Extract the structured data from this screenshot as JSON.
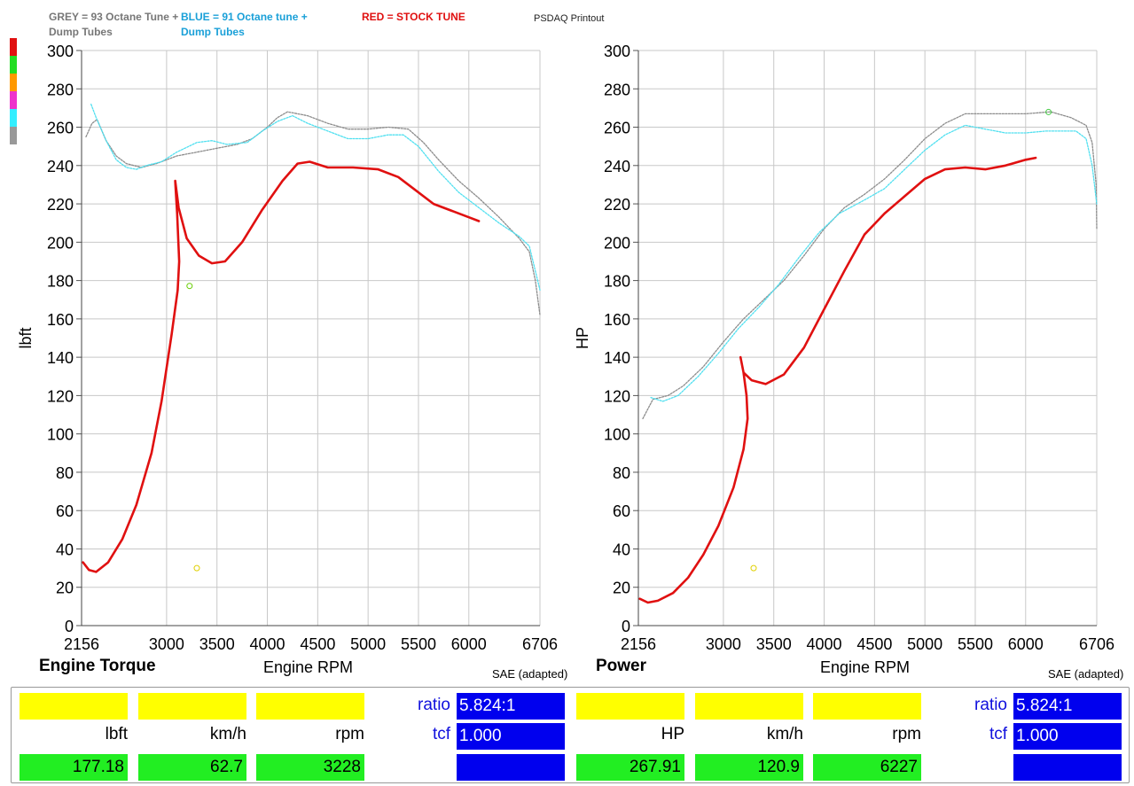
{
  "legend": {
    "grey": "GREY = 93 Octane Tune + Dump Tubes",
    "blue": "BLUE = 91 Octane tune + Dump Tubes",
    "red": "RED =  STOCK TUNE",
    "psdaq": "PSDAQ Printout"
  },
  "colors": {
    "grey": "#8c8c8c",
    "cyan": "#50e0f0",
    "red": "#e01010",
    "yellow": "#ffff00",
    "green": "#22ee22",
    "blue": "#0000ee"
  },
  "panels": {
    "torque": {
      "title": "Engine Torque",
      "xlabel": "Engine RPM",
      "sae": "SAE (adapted)",
      "units": [
        "lbft",
        "km/h",
        "rpm"
      ],
      "values": [
        "177.18",
        "62.7",
        "3228"
      ],
      "ratio_label": "ratio",
      "ratio_value": "5.824:1",
      "tcf_label": "tcf",
      "tcf_value": "1.000"
    },
    "power": {
      "title": "Power",
      "xlabel": "Engine RPM",
      "sae": "SAE (adapted)",
      "units": [
        "HP",
        "km/h",
        "rpm"
      ],
      "values": [
        "267.91",
        "120.9",
        "6227"
      ],
      "ratio_label": "ratio",
      "ratio_value": "5.824:1",
      "tcf_label": "tcf",
      "tcf_value": "1.000"
    }
  },
  "chart_data": [
    {
      "type": "line",
      "title": "Engine Torque",
      "xlabel": "Engine RPM",
      "ylabel": "lbft",
      "xlim": [
        2156,
        6706
      ],
      "ylim": [
        0,
        300
      ],
      "x_ticks": [
        2156,
        3000,
        3500,
        4000,
        4500,
        5000,
        5500,
        6000,
        6706
      ],
      "y_ticks": [
        0,
        20,
        40,
        60,
        80,
        100,
        120,
        140,
        160,
        180,
        200,
        220,
        240,
        260,
        280,
        300
      ],
      "grid": true,
      "series": [
        {
          "name": "GREY = 93 Octane Tune + Dump Tubes",
          "color": "grey",
          "style": "dotted",
          "points": [
            [
              2200,
              255
            ],
            [
              2260,
              262
            ],
            [
              2310,
              264
            ],
            [
              2400,
              253
            ],
            [
              2500,
              245
            ],
            [
              2600,
              241
            ],
            [
              2750,
              239
            ],
            [
              2900,
              241
            ],
            [
              3100,
              245
            ],
            [
              3300,
              247
            ],
            [
              3500,
              249
            ],
            [
              3700,
              251
            ],
            [
              3850,
              254
            ],
            [
              4000,
              260
            ],
            [
              4100,
              265
            ],
            [
              4200,
              268
            ],
            [
              4400,
              266
            ],
            [
              4600,
              262
            ],
            [
              4800,
              259
            ],
            [
              5000,
              259
            ],
            [
              5200,
              260
            ],
            [
              5400,
              259
            ],
            [
              5550,
              252
            ],
            [
              5700,
              243
            ],
            [
              5900,
              232
            ],
            [
              6100,
              223
            ],
            [
              6300,
              213
            ],
            [
              6500,
              202
            ],
            [
              6600,
              195
            ],
            [
              6660,
              180
            ],
            [
              6706,
              162
            ]
          ]
        },
        {
          "name": "BLUE = 91 Octane tune + Dump Tubes",
          "color": "cyan",
          "style": "dotted",
          "points": [
            [
              2250,
              272
            ],
            [
              2300,
              265
            ],
            [
              2400,
              253
            ],
            [
              2500,
              243
            ],
            [
              2600,
              239
            ],
            [
              2700,
              238
            ],
            [
              2800,
              240
            ],
            [
              2950,
              242
            ],
            [
              3100,
              247
            ],
            [
              3300,
              252
            ],
            [
              3450,
              253
            ],
            [
              3600,
              251
            ],
            [
              3800,
              252
            ],
            [
              3950,
              258
            ],
            [
              4100,
              263
            ],
            [
              4250,
              266
            ],
            [
              4400,
              262
            ],
            [
              4600,
              258
            ],
            [
              4800,
              254
            ],
            [
              5000,
              254
            ],
            [
              5200,
              256
            ],
            [
              5350,
              256
            ],
            [
              5500,
              250
            ],
            [
              5700,
              237
            ],
            [
              5900,
              226
            ],
            [
              6100,
              218
            ],
            [
              6300,
              210
            ],
            [
              6500,
              203
            ],
            [
              6600,
              198
            ],
            [
              6660,
              185
            ],
            [
              6706,
              175
            ]
          ]
        },
        {
          "name": "RED =  STOCK TUNE",
          "color": "red",
          "style": "solid",
          "points": [
            [
              2170,
              33
            ],
            [
              2230,
              29
            ],
            [
              2300,
              28
            ],
            [
              2420,
              33
            ],
            [
              2560,
              45
            ],
            [
              2700,
              63
            ],
            [
              2850,
              90
            ],
            [
              2950,
              117
            ],
            [
              3050,
              152
            ],
            [
              3110,
              175
            ],
            [
              3125,
              190
            ],
            [
              3105,
              215
            ],
            [
              3090,
              228
            ],
            [
              3085,
              232
            ],
            [
              3120,
              218
            ],
            [
              3200,
              202
            ],
            [
              3320,
              193
            ],
            [
              3450,
              189
            ],
            [
              3580,
              190
            ],
            [
              3750,
              200
            ],
            [
              3950,
              217
            ],
            [
              4150,
              232
            ],
            [
              4300,
              241
            ],
            [
              4420,
              242
            ],
            [
              4600,
              239
            ],
            [
              4850,
              239
            ],
            [
              5100,
              238
            ],
            [
              5300,
              234
            ],
            [
              5450,
              228
            ],
            [
              5650,
              220
            ],
            [
              5850,
              216
            ],
            [
              6000,
              213
            ],
            [
              6100,
              211
            ]
          ]
        }
      ],
      "markers": [
        {
          "x": 3228,
          "y": 177.18,
          "color": "#66cc00"
        },
        {
          "x": 3300,
          "y": 30,
          "color": "#e0d000"
        }
      ]
    },
    {
      "type": "line",
      "title": "Power",
      "xlabel": "Engine RPM",
      "ylabel": "HP",
      "xlim": [
        2156,
        6706
      ],
      "ylim": [
        0,
        300
      ],
      "x_ticks": [
        2156,
        3000,
        3500,
        4000,
        4500,
        5000,
        5500,
        6000,
        6706
      ],
      "y_ticks": [
        0,
        20,
        40,
        60,
        80,
        100,
        120,
        140,
        160,
        180,
        200,
        220,
        240,
        260,
        280,
        300
      ],
      "grid": true,
      "series": [
        {
          "name": "GREY = 93 Octane Tune + Dump Tubes",
          "color": "grey",
          "style": "dotted",
          "points": [
            [
              2200,
              108
            ],
            [
              2300,
              118
            ],
            [
              2450,
              120
            ],
            [
              2600,
              125
            ],
            [
              2800,
              135
            ],
            [
              3000,
              148
            ],
            [
              3200,
              160
            ],
            [
              3400,
              170
            ],
            [
              3600,
              180
            ],
            [
              3800,
              193
            ],
            [
              4000,
              207
            ],
            [
              4200,
              218
            ],
            [
              4400,
              225
            ],
            [
              4600,
              233
            ],
            [
              4800,
              243
            ],
            [
              5000,
              254
            ],
            [
              5200,
              262
            ],
            [
              5400,
              267
            ],
            [
              5700,
              267
            ],
            [
              6000,
              267
            ],
            [
              6250,
              268
            ],
            [
              6450,
              265
            ],
            [
              6600,
              261
            ],
            [
              6660,
              252
            ],
            [
              6700,
              230
            ],
            [
              6706,
              207
            ]
          ]
        },
        {
          "name": "BLUE = 91 Octane tune + Dump Tubes",
          "color": "cyan",
          "style": "dotted",
          "points": [
            [
              2280,
              119
            ],
            [
              2400,
              117
            ],
            [
              2550,
              120
            ],
            [
              2750,
              130
            ],
            [
              2950,
              142
            ],
            [
              3150,
              155
            ],
            [
              3350,
              166
            ],
            [
              3550,
              178
            ],
            [
              3750,
              192
            ],
            [
              3950,
              205
            ],
            [
              4150,
              215
            ],
            [
              4400,
              222
            ],
            [
              4600,
              228
            ],
            [
              4800,
              238
            ],
            [
              5000,
              248
            ],
            [
              5200,
              256
            ],
            [
              5400,
              261
            ],
            [
              5600,
              259
            ],
            [
              5800,
              257
            ],
            [
              6000,
              257
            ],
            [
              6200,
              258
            ],
            [
              6500,
              258
            ],
            [
              6600,
              254
            ],
            [
              6660,
              240
            ],
            [
              6706,
              220
            ]
          ]
        },
        {
          "name": "RED =  STOCK TUNE",
          "color": "red",
          "style": "solid",
          "points": [
            [
              2170,
              14
            ],
            [
              2250,
              12
            ],
            [
              2350,
              13
            ],
            [
              2500,
              17
            ],
            [
              2650,
              25
            ],
            [
              2800,
              37
            ],
            [
              2950,
              52
            ],
            [
              3100,
              72
            ],
            [
              3200,
              92
            ],
            [
              3240,
              108
            ],
            [
              3230,
              120
            ],
            [
              3200,
              132
            ],
            [
              3170,
              140
            ],
            [
              3200,
              132
            ],
            [
              3280,
              128
            ],
            [
              3420,
              126
            ],
            [
              3600,
              131
            ],
            [
              3800,
              145
            ],
            [
              4000,
              165
            ],
            [
              4200,
              185
            ],
            [
              4400,
              204
            ],
            [
              4600,
              215
            ],
            [
              4800,
              224
            ],
            [
              5000,
              233
            ],
            [
              5200,
              238
            ],
            [
              5400,
              239
            ],
            [
              5600,
              238
            ],
            [
              5800,
              240
            ],
            [
              6000,
              243
            ],
            [
              6100,
              244
            ]
          ]
        }
      ],
      "markers": [
        {
          "x": 6227,
          "y": 267.91,
          "color": "#44cc44"
        },
        {
          "x": 3300,
          "y": 30,
          "color": "#e0d000"
        }
      ]
    }
  ]
}
